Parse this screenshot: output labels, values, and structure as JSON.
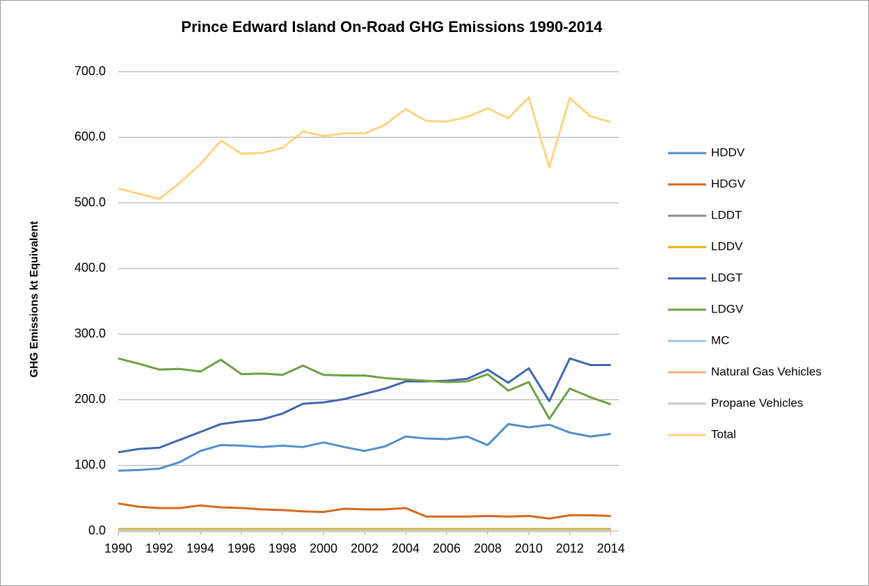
{
  "chart_data": {
    "type": "line",
    "title": "Prince Edward Island On-Road GHG Emissions 1990-2014",
    "y_label": "GHG Emissions kt Equivalent",
    "x": [
      1990,
      1991,
      1992,
      1993,
      1994,
      1995,
      1996,
      1997,
      1998,
      1999,
      2000,
      2001,
      2002,
      2003,
      2004,
      2005,
      2006,
      2007,
      2008,
      2009,
      2010,
      2011,
      2012,
      2013,
      2014
    ],
    "xlim": [
      1990,
      2014
    ],
    "xticks": [
      1990,
      1992,
      1994,
      1996,
      1998,
      2000,
      2002,
      2004,
      2006,
      2008,
      2010,
      2012,
      2014
    ],
    "ylim": [
      0,
      700
    ],
    "yticks": [
      {
        "value": 0,
        "label": "0.0"
      },
      {
        "value": 100,
        "label": "100.0"
      },
      {
        "value": 200,
        "label": "200.0"
      },
      {
        "value": 300,
        "label": "300.0"
      },
      {
        "value": 400,
        "label": "400.0"
      },
      {
        "value": 500,
        "label": "500.0"
      },
      {
        "value": 600,
        "label": "600.0"
      },
      {
        "value": 700,
        "label": "700.0"
      }
    ],
    "grid": true,
    "legend": "right",
    "series": [
      {
        "name": "HDDV",
        "color": "#4f8fca",
        "values": [
          92,
          93,
          95,
          105,
          122,
          131,
          130,
          128,
          130,
          128,
          135,
          128,
          122,
          129,
          144,
          141,
          140,
          144,
          131,
          163,
          158,
          162,
          150,
          144,
          148
        ]
      },
      {
        "name": "HDGV",
        "color": "#d2691e",
        "values": [
          42,
          37,
          35,
          35,
          39,
          36,
          35,
          33,
          32,
          30,
          29,
          34,
          33,
          33,
          35,
          22,
          22,
          22,
          23,
          22,
          23,
          19,
          24,
          24,
          23
        ]
      },
      {
        "name": "LDDT",
        "color": "#8c8c8c",
        "values": [
          1,
          1,
          1,
          1,
          1,
          1,
          1,
          1,
          1,
          1,
          1,
          1,
          1,
          1,
          1,
          1,
          1,
          1,
          1,
          1,
          1,
          1,
          1,
          1,
          1
        ]
      },
      {
        "name": "LDDV",
        "color": "#e0b000",
        "values": [
          3,
          3,
          3,
          3,
          3,
          3,
          3,
          3,
          3,
          3,
          3,
          3,
          3,
          3,
          3,
          3,
          3,
          3,
          3,
          3,
          3,
          3,
          3,
          3,
          3
        ]
      },
      {
        "name": "LDGT",
        "color": "#3f67b0",
        "values": [
          120,
          125,
          127,
          139,
          151,
          163,
          167,
          170,
          179,
          194,
          196,
          201,
          209,
          217,
          228,
          228,
          229,
          232,
          246,
          226,
          248,
          198,
          263,
          253,
          253
        ]
      },
      {
        "name": "LDGV",
        "color": "#6da043",
        "values": [
          263,
          255,
          246,
          247,
          243,
          261,
          239,
          240,
          238,
          252,
          238,
          237,
          237,
          233,
          231,
          229,
          227,
          228,
          239,
          214,
          227,
          171,
          217,
          204,
          193
        ]
      },
      {
        "name": "MC",
        "color": "#9dc3e6",
        "values": [
          1,
          1,
          1,
          1,
          1,
          1,
          1,
          1,
          1,
          1,
          1,
          1,
          1,
          1,
          1,
          1,
          1,
          1,
          1,
          1,
          1,
          1,
          1,
          1,
          1
        ]
      },
      {
        "name": "Natural Gas Vehicles",
        "color": "#f4b183",
        "values": [
          0,
          0,
          0,
          0,
          0,
          0,
          0,
          0,
          0,
          0,
          0,
          0,
          0,
          0,
          0,
          0,
          0,
          0,
          0,
          0,
          0,
          0,
          0,
          0,
          0
        ]
      },
      {
        "name": "Propane Vehicles",
        "color": "#c9c9c9",
        "values": [
          0.5,
          0.5,
          0.5,
          0.5,
          0.5,
          0.5,
          0.5,
          0.5,
          0.5,
          0.5,
          0.5,
          0.5,
          0.5,
          0.5,
          0.5,
          0.5,
          0.5,
          0.5,
          0.5,
          0.5,
          0.5,
          0.5,
          0.5,
          0.5,
          0.5
        ]
      },
      {
        "name": "Total",
        "color": "#ffd37f",
        "values": [
          522,
          514,
          506,
          531,
          559,
          595,
          575,
          576,
          584,
          609,
          602,
          606,
          606,
          619,
          643,
          625,
          624,
          631,
          644,
          629,
          661,
          554,
          660,
          632,
          623
        ]
      }
    ]
  }
}
